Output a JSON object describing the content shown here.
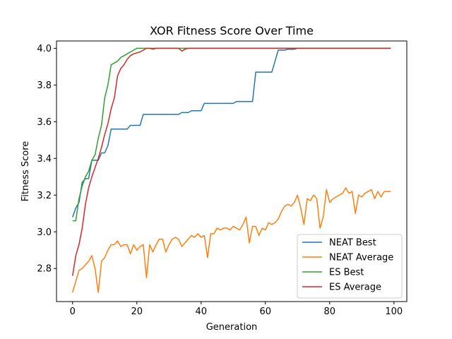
{
  "chart_data": {
    "type": "line",
    "title": "XOR Fitness Score Over Time",
    "xlabel": "Generation",
    "ylabel": "Fitness Score",
    "xlim": [
      -5,
      104
    ],
    "ylim": [
      2.62,
      4.04
    ],
    "xticks": [
      0,
      20,
      40,
      60,
      80,
      100
    ],
    "yticks": [
      2.8,
      3.0,
      3.2,
      3.4,
      3.6,
      3.8,
      4.0
    ],
    "xtick_labels": [
      "0",
      "20",
      "40",
      "60",
      "80",
      "100"
    ],
    "ytick_labels": [
      "2.8",
      "3.0",
      "3.2",
      "3.4",
      "3.6",
      "3.8",
      "4.0"
    ],
    "grid": false,
    "legend_position": "lower-right",
    "x": [
      0,
      1,
      2,
      3,
      4,
      5,
      6,
      7,
      8,
      9,
      10,
      11,
      12,
      13,
      14,
      15,
      16,
      17,
      18,
      19,
      20,
      21,
      22,
      23,
      24,
      25,
      26,
      27,
      28,
      29,
      30,
      31,
      32,
      33,
      34,
      35,
      36,
      37,
      38,
      39,
      40,
      41,
      42,
      43,
      44,
      45,
      46,
      47,
      48,
      49,
      50,
      51,
      52,
      53,
      54,
      55,
      56,
      57,
      58,
      59,
      60,
      61,
      62,
      63,
      64,
      65,
      66,
      67,
      68,
      69,
      70,
      71,
      72,
      73,
      74,
      75,
      76,
      77,
      78,
      79,
      80,
      81,
      82,
      83,
      84,
      85,
      86,
      87,
      88,
      89,
      90,
      91,
      92,
      93,
      94,
      95,
      96,
      97,
      98,
      99
    ],
    "series": [
      {
        "name": "NEAT Best",
        "color": "#1f77b4",
        "values": [
          3.08,
          3.13,
          3.16,
          3.27,
          3.29,
          3.29,
          3.39,
          3.39,
          3.39,
          3.43,
          3.43,
          3.47,
          3.56,
          3.56,
          3.56,
          3.56,
          3.56,
          3.56,
          3.58,
          3.58,
          3.58,
          3.58,
          3.64,
          3.64,
          3.64,
          3.64,
          3.64,
          3.64,
          3.64,
          3.64,
          3.64,
          3.64,
          3.64,
          3.64,
          3.65,
          3.65,
          3.65,
          3.66,
          3.66,
          3.66,
          3.66,
          3.7,
          3.7,
          3.7,
          3.7,
          3.7,
          3.7,
          3.7,
          3.7,
          3.7,
          3.7,
          3.71,
          3.71,
          3.71,
          3.71,
          3.71,
          3.71,
          3.87,
          3.87,
          3.87,
          3.87,
          3.87,
          3.87,
          3.93,
          3.99,
          3.99,
          3.99,
          3.995,
          3.995,
          3.995,
          4.0,
          4.0,
          4.0,
          4.0,
          4.0,
          4.0,
          4.0,
          4.0,
          4.0,
          4.0,
          4.0,
          4.0,
          4.0,
          4.0,
          4.0,
          4.0,
          4.0,
          4.0,
          4.0,
          4.0,
          4.0,
          4.0,
          4.0,
          4.0,
          4.0,
          4.0,
          4.0,
          4.0,
          4.0,
          4.0
        ]
      },
      {
        "name": "NEAT Average",
        "color": "#ff7f0e",
        "values": [
          2.67,
          2.73,
          2.79,
          2.8,
          2.82,
          2.84,
          2.87,
          2.8,
          2.67,
          2.84,
          2.86,
          2.9,
          2.93,
          2.93,
          2.95,
          2.92,
          2.93,
          2.93,
          2.88,
          2.93,
          2.9,
          2.92,
          2.93,
          2.75,
          2.93,
          2.89,
          2.93,
          2.96,
          2.96,
          2.89,
          2.93,
          2.96,
          2.97,
          2.96,
          2.92,
          2.94,
          2.96,
          2.98,
          2.97,
          2.99,
          2.97,
          2.98,
          2.86,
          2.99,
          2.99,
          3.02,
          3.01,
          3.02,
          3.02,
          3.01,
          3.03,
          3.02,
          3.01,
          3.04,
          3.08,
          2.94,
          3.03,
          3.03,
          2.98,
          3.02,
          3.01,
          3.05,
          3.04,
          3.05,
          3.07,
          3.11,
          3.14,
          3.15,
          3.14,
          3.16,
          3.2,
          3.13,
          3.04,
          3.18,
          3.17,
          3.2,
          3.18,
          3.02,
          3.08,
          3.23,
          3.16,
          3.18,
          3.19,
          3.2,
          3.21,
          3.24,
          3.21,
          3.22,
          3.1,
          3.2,
          3.19,
          3.21,
          3.22,
          3.23,
          3.18,
          3.22,
          3.19,
          3.22,
          3.22,
          3.22
        ]
      },
      {
        "name": "ES Best",
        "color": "#2ca02c",
        "values": [
          3.06,
          3.06,
          3.18,
          3.25,
          3.3,
          3.33,
          3.39,
          3.42,
          3.51,
          3.58,
          3.73,
          3.8,
          3.91,
          3.92,
          3.93,
          3.95,
          3.96,
          3.97,
          3.98,
          3.99,
          4.0,
          4.0,
          4.0,
          4.0,
          4.0,
          4.0,
          4.0,
          4.0,
          4.0,
          4.0,
          4.0,
          4.0,
          4.0,
          4.0,
          4.0,
          4.0,
          4.0,
          4.0,
          4.0,
          4.0,
          4.0,
          4.0,
          4.0,
          4.0,
          4.0,
          4.0,
          4.0,
          4.0,
          4.0,
          4.0,
          4.0,
          4.0,
          4.0,
          4.0,
          4.0,
          4.0,
          4.0,
          4.0,
          4.0,
          4.0,
          4.0,
          4.0,
          4.0,
          4.0,
          4.0,
          4.0,
          4.0,
          4.0,
          4.0,
          4.0,
          4.0,
          4.0,
          4.0,
          4.0,
          4.0,
          4.0,
          4.0,
          4.0,
          4.0,
          4.0,
          4.0,
          4.0,
          4.0,
          4.0,
          4.0,
          4.0,
          4.0,
          4.0,
          4.0,
          4.0,
          4.0,
          4.0,
          4.0,
          4.0,
          4.0,
          4.0,
          4.0,
          4.0,
          4.0,
          4.0
        ]
      },
      {
        "name": "ES Average",
        "color": "#d62728",
        "values": [
          2.76,
          2.87,
          2.93,
          3.02,
          3.15,
          3.24,
          3.3,
          3.35,
          3.4,
          3.46,
          3.53,
          3.59,
          3.67,
          3.73,
          3.85,
          3.89,
          3.91,
          3.94,
          3.96,
          3.97,
          3.975,
          3.98,
          3.99,
          4.0,
          4.0,
          3.995,
          4.0,
          4.0,
          4.0,
          4.0,
          4.0,
          4.0,
          4.0,
          4.0,
          3.985,
          3.995,
          4.0,
          4.0,
          4.0,
          4.0,
          4.0,
          4.0,
          4.0,
          4.0,
          4.0,
          4.0,
          4.0,
          4.0,
          4.0,
          4.0,
          4.0,
          4.0,
          4.0,
          4.0,
          4.0,
          4.0,
          4.0,
          4.0,
          4.0,
          4.0,
          4.0,
          4.0,
          4.0,
          4.0,
          4.0,
          4.0,
          4.0,
          4.0,
          4.0,
          4.0,
          4.0,
          4.0,
          4.0,
          4.0,
          4.0,
          4.0,
          4.0,
          4.0,
          4.0,
          4.0,
          4.0,
          4.0,
          4.0,
          4.0,
          4.0,
          4.0,
          4.0,
          4.0,
          4.0,
          4.0,
          4.0,
          4.0,
          4.0,
          4.0,
          4.0,
          4.0,
          4.0,
          4.0,
          4.0,
          4.0
        ]
      }
    ]
  }
}
